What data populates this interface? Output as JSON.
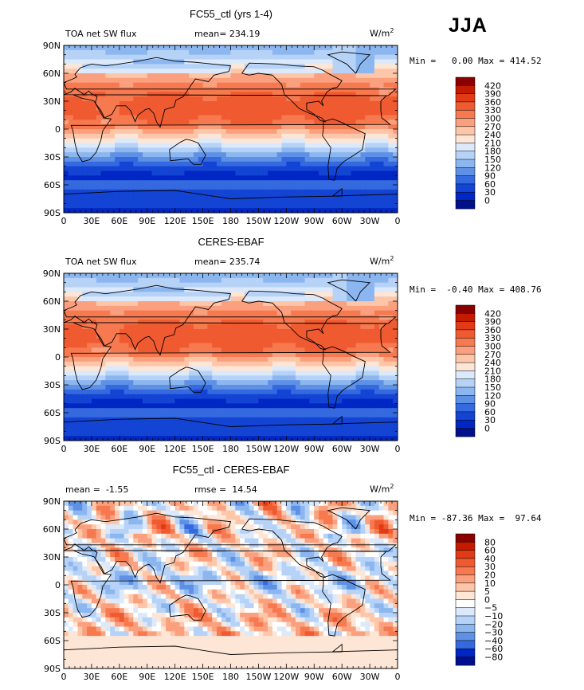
{
  "season": "JJA",
  "chart_data": [
    {
      "type": "heatmap",
      "title": "FC55_ctl (yrs 1-4)",
      "left_label": "TOA net SW flux",
      "stat_label": "mean= 234.19",
      "units_label": "W/m",
      "units_exp": "2",
      "minmax_label": "Min =   0.00 Max = 414.52",
      "x_ticks": [
        "0",
        "30E",
        "60E",
        "90E",
        "120E",
        "150E",
        "180",
        "150W",
        "120W",
        "90W",
        "60W",
        "30W",
        "0"
      ],
      "y_ticks": [
        "90N",
        "60N",
        "30N",
        "0",
        "30S",
        "60S",
        "90S"
      ],
      "colorbar": {
        "labels": [
          "420",
          "390",
          "360",
          "330",
          "300",
          "270",
          "240",
          "210",
          "180",
          "150",
          "120",
          "90",
          "60",
          "30",
          "0"
        ],
        "colors": [
          "#8a0000",
          "#c41a00",
          "#e23a14",
          "#f05a30",
          "#f7794f",
          "#faa07f",
          "#fdc6a9",
          "#fde6d6",
          "#dbe9fb",
          "#b6d2f7",
          "#8cb6f0",
          "#5e91e6",
          "#3569df",
          "#1344d4",
          "#0027c4",
          "#000f8c"
        ]
      }
    },
    {
      "type": "heatmap",
      "title": "CERES-EBAF",
      "left_label": "TOA net SW flux",
      "stat_label": "mean= 235.74",
      "units_label": "W/m",
      "units_exp": "2",
      "minmax_label": "Min =  -0.40 Max = 408.76",
      "x_ticks": [
        "0",
        "30E",
        "60E",
        "90E",
        "120E",
        "150E",
        "180",
        "150W",
        "120W",
        "90W",
        "60W",
        "30W",
        "0"
      ],
      "y_ticks": [
        "90N",
        "60N",
        "30N",
        "0",
        "30S",
        "60S",
        "90S"
      ],
      "colorbar": {
        "labels": [
          "420",
          "390",
          "360",
          "330",
          "300",
          "270",
          "240",
          "210",
          "180",
          "150",
          "120",
          "90",
          "60",
          "30",
          "0"
        ],
        "colors": [
          "#8a0000",
          "#c41a00",
          "#e23a14",
          "#f05a30",
          "#f7794f",
          "#faa07f",
          "#fdc6a9",
          "#fde6d6",
          "#dbe9fb",
          "#b6d2f7",
          "#8cb6f0",
          "#5e91e6",
          "#3569df",
          "#1344d4",
          "#0027c4",
          "#000f8c"
        ]
      }
    },
    {
      "type": "heatmap",
      "title": "FC55_ctl - CERES-EBAF",
      "left_label": "mean =  -1.55",
      "stat_label": "rmse =  14.54",
      "units_label": "W/m",
      "units_exp": "2",
      "minmax_label": "Min = -87.36 Max =  97.64",
      "x_ticks": [
        "0",
        "30E",
        "60E",
        "90E",
        "120E",
        "150E",
        "180",
        "150W",
        "120W",
        "90W",
        "60W",
        "30W",
        "0"
      ],
      "y_ticks": [
        "90N",
        "60N",
        "30N",
        "0",
        "30S",
        "60S",
        "90S"
      ],
      "colorbar": {
        "labels": [
          "80",
          "60",
          "40",
          "30",
          "20",
          "10",
          "5",
          "0",
          "−5",
          "−10",
          "−20",
          "−30",
          "−40",
          "−60",
          "−80"
        ],
        "colors": [
          "#8a0000",
          "#c41a00",
          "#e23a14",
          "#f05a30",
          "#f7794f",
          "#faa07f",
          "#fdc6a9",
          "#fde6d6",
          "#ffffff",
          "#dbe9fb",
          "#b6d2f7",
          "#8cb6f0",
          "#5e91e6",
          "#3569df",
          "#0027c4",
          "#000f8c"
        ]
      }
    }
  ]
}
